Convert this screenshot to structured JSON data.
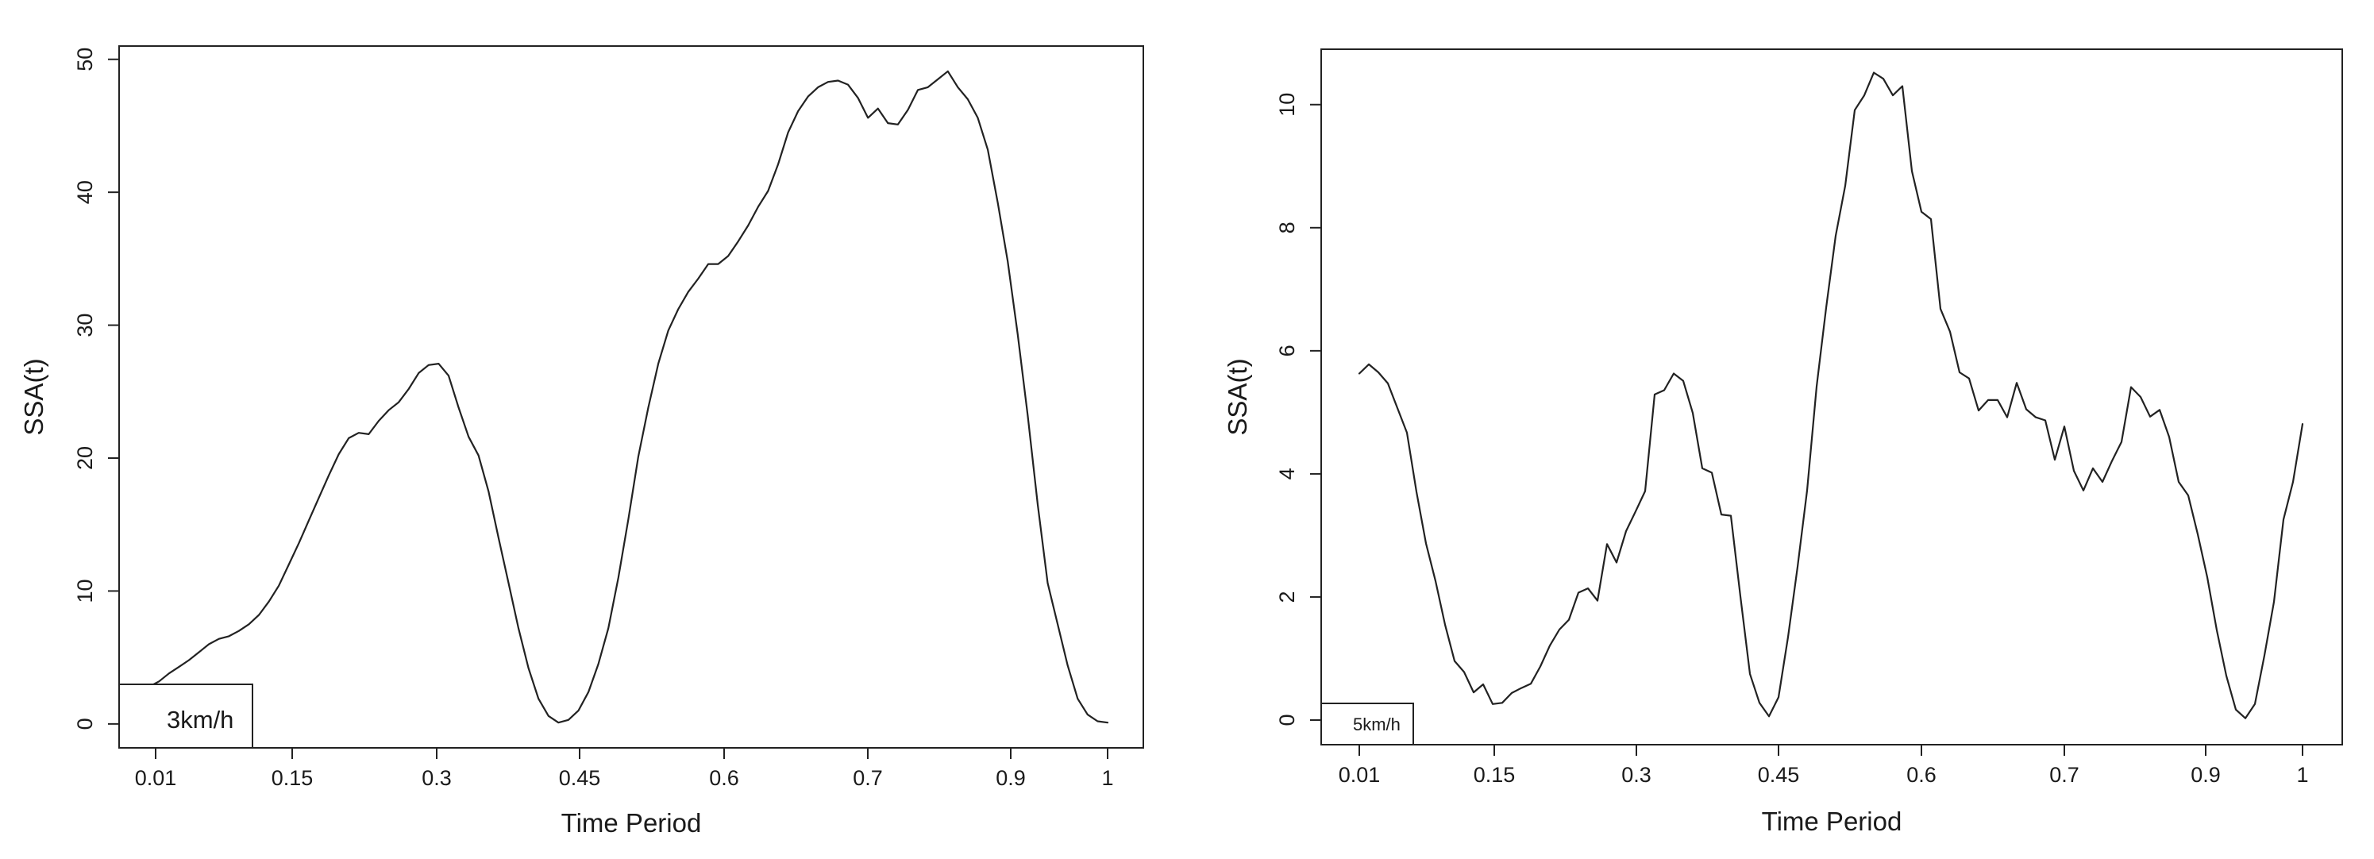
{
  "chart_data": [
    {
      "type": "line",
      "xlabel": "Time Period",
      "ylabel": "SSA(t)",
      "x_tick_labels": [
        "0.01",
        "0.15",
        "0.3",
        "0.45",
        "0.6",
        "0.7",
        "0.9",
        "1"
      ],
      "y_ticks": [
        0,
        10,
        20,
        30,
        40,
        50
      ],
      "ylim": [
        -1.8,
        51
      ],
      "legend": {
        "label": "3km/h",
        "position": "bottom-left"
      },
      "grid": false,
      "series": [
        {
          "values": [
            2.9,
            2.8,
            2.6,
            2.8,
            3.2,
            3.8,
            4.3,
            4.8,
            5.4,
            6.0,
            6.4,
            6.6,
            7.0,
            7.5,
            8.2,
            9.2,
            10.4,
            12.0,
            13.6,
            15.3,
            17.0,
            18.7,
            20.3,
            21.5,
            21.9,
            21.8,
            22.8,
            23.6,
            24.2,
            25.2,
            26.4,
            27.0,
            27.1,
            26.2,
            23.8,
            21.6,
            20.2,
            17.5,
            14.0,
            10.6,
            7.2,
            4.2,
            1.9,
            0.6,
            0.1,
            0.3,
            1.0,
            2.4,
            4.5,
            7.2,
            11.0,
            15.4,
            20.1,
            23.8,
            27.1,
            29.6,
            31.2,
            32.5,
            33.5,
            34.6,
            34.6,
            35.2,
            36.3,
            37.5,
            38.9,
            40.1,
            42.1,
            44.5,
            46.1,
            47.2,
            47.9,
            48.3,
            48.4,
            48.1,
            47.1,
            45.6,
            46.3,
            45.2,
            45.1,
            46.2,
            47.7,
            47.9,
            48.5,
            49.1,
            47.9,
            47.0,
            45.6,
            43.2,
            39.2,
            34.8,
            29.3,
            23.2,
            16.5,
            10.6,
            7.5,
            4.4,
            1.9,
            0.7,
            0.2,
            0.1
          ]
        }
      ]
    },
    {
      "type": "line",
      "xlabel": "Time Period",
      "ylabel": "SSA(t)",
      "x_tick_labels": [
        "0.01",
        "0.15",
        "0.3",
        "0.45",
        "0.6",
        "0.7",
        "0.9",
        "1"
      ],
      "y_ticks": [
        0,
        2,
        4,
        6,
        8,
        10
      ],
      "ylim": [
        -0.4,
        10.9
      ],
      "legend": {
        "label": "5km/h",
        "position": "bottom-left"
      },
      "grid": false,
      "series": [
        {
          "values": [
            5.63,
            5.78,
            5.65,
            5.47,
            5.07,
            4.67,
            3.71,
            2.87,
            2.26,
            1.55,
            0.96,
            0.78,
            0.45,
            0.58,
            0.26,
            0.28,
            0.44,
            0.52,
            0.59,
            0.87,
            1.21,
            1.47,
            1.63,
            2.07,
            2.14,
            1.94,
            2.86,
            2.56,
            3.07,
            3.39,
            3.72,
            5.29,
            5.36,
            5.63,
            5.51,
            4.99,
            4.09,
            4.02,
            3.34,
            3.32,
            2.01,
            0.75,
            0.28,
            0.06,
            0.37,
            1.35,
            2.49,
            3.73,
            5.42,
            6.7,
            7.87,
            8.68,
            9.91,
            10.15,
            10.52,
            10.42,
            10.15,
            10.3,
            8.92,
            8.26,
            8.14,
            6.68,
            6.31,
            5.65,
            5.55,
            5.03,
            5.2,
            5.2,
            4.92,
            5.48,
            5.05,
            4.92,
            4.87,
            4.23,
            4.77,
            4.05,
            3.73,
            4.09,
            3.87,
            4.21,
            4.52,
            5.41,
            5.25,
            4.93,
            5.04,
            4.6,
            3.87,
            3.65,
            3.02,
            2.32,
            1.46,
            0.72,
            0.17,
            0.03,
            0.26,
            1.05,
            1.92,
            3.26,
            3.87,
            4.81
          ]
        }
      ]
    }
  ]
}
